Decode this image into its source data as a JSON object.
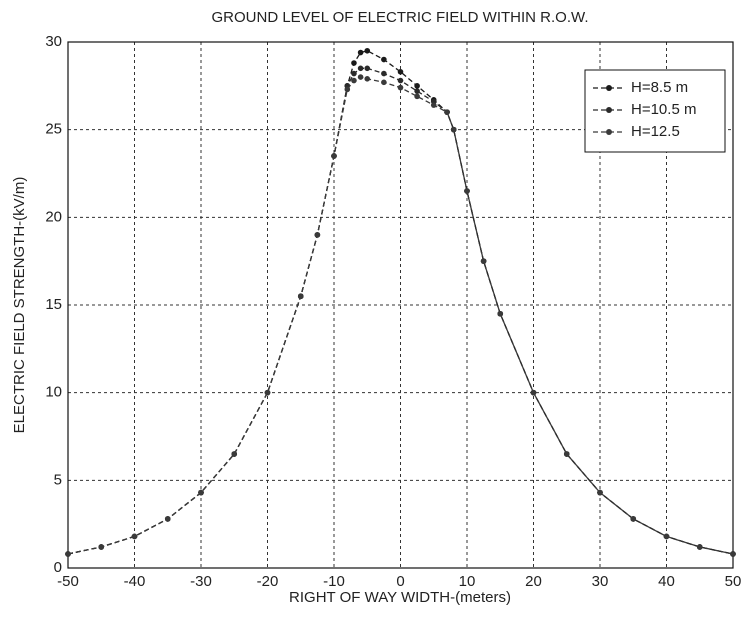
{
  "chart_data": {
    "type": "line",
    "title": "GROUND LEVEL OF ELECTRIC FIELD WITHIN R.O.W.",
    "xlabel": "RIGHT OF WAY WIDTH-(meters)",
    "ylabel": "ELECTRIC FIELD STRENGTH-(kV/m)",
    "x": [
      -50,
      -45,
      -40,
      -35,
      -30,
      -25,
      -20,
      -15,
      -12.5,
      -10,
      -8,
      -7,
      -6,
      -5,
      -2.5,
      0,
      2.5,
      5,
      7,
      8,
      10,
      12.5,
      15,
      20,
      25,
      30,
      35,
      40,
      45,
      50
    ],
    "series": [
      {
        "name": "H=8.5 m",
        "color": "#1a1a1a",
        "values": [
          0.8,
          1.2,
          1.8,
          2.8,
          4.3,
          6.5,
          10,
          15.5,
          19,
          23.5,
          27.5,
          28.8,
          29.4,
          29.5,
          29.0,
          28.3,
          27.5,
          26.7,
          26.0,
          25.0,
          21.5,
          17.5,
          14.5,
          10,
          6.5,
          4.3,
          2.8,
          1.8,
          1.2,
          0.8
        ]
      },
      {
        "name": "H=10.5 m",
        "color": "#2a2a2a",
        "values": [
          0.8,
          1.2,
          1.8,
          2.8,
          4.3,
          6.5,
          10,
          15.5,
          19,
          23.5,
          27.5,
          28.2,
          28.5,
          28.5,
          28.2,
          27.8,
          27.2,
          26.6,
          26.0,
          25.0,
          21.5,
          17.5,
          14.5,
          10,
          6.5,
          4.3,
          2.8,
          1.8,
          1.2,
          0.8
        ]
      },
      {
        "name": "H=12.5",
        "color": "#3a3a3a",
        "values": [
          0.8,
          1.2,
          1.8,
          2.8,
          4.3,
          6.5,
          10,
          15.5,
          19,
          23.5,
          27.3,
          27.8,
          28.0,
          27.9,
          27.7,
          27.4,
          26.9,
          26.4,
          26.0,
          25.0,
          21.5,
          17.5,
          14.5,
          10,
          6.5,
          4.3,
          2.8,
          1.8,
          1.2,
          0.8
        ]
      }
    ],
    "xlim": [
      -50,
      50
    ],
    "xticks": [
      -50,
      -40,
      -30,
      -20,
      -10,
      0,
      10,
      20,
      30,
      40,
      50
    ],
    "ylim": [
      0,
      30
    ],
    "yticks": [
      0,
      5,
      10,
      15,
      20,
      25,
      30
    ],
    "grid": true,
    "legend": "upper right",
    "linestyle": "dashed"
  }
}
